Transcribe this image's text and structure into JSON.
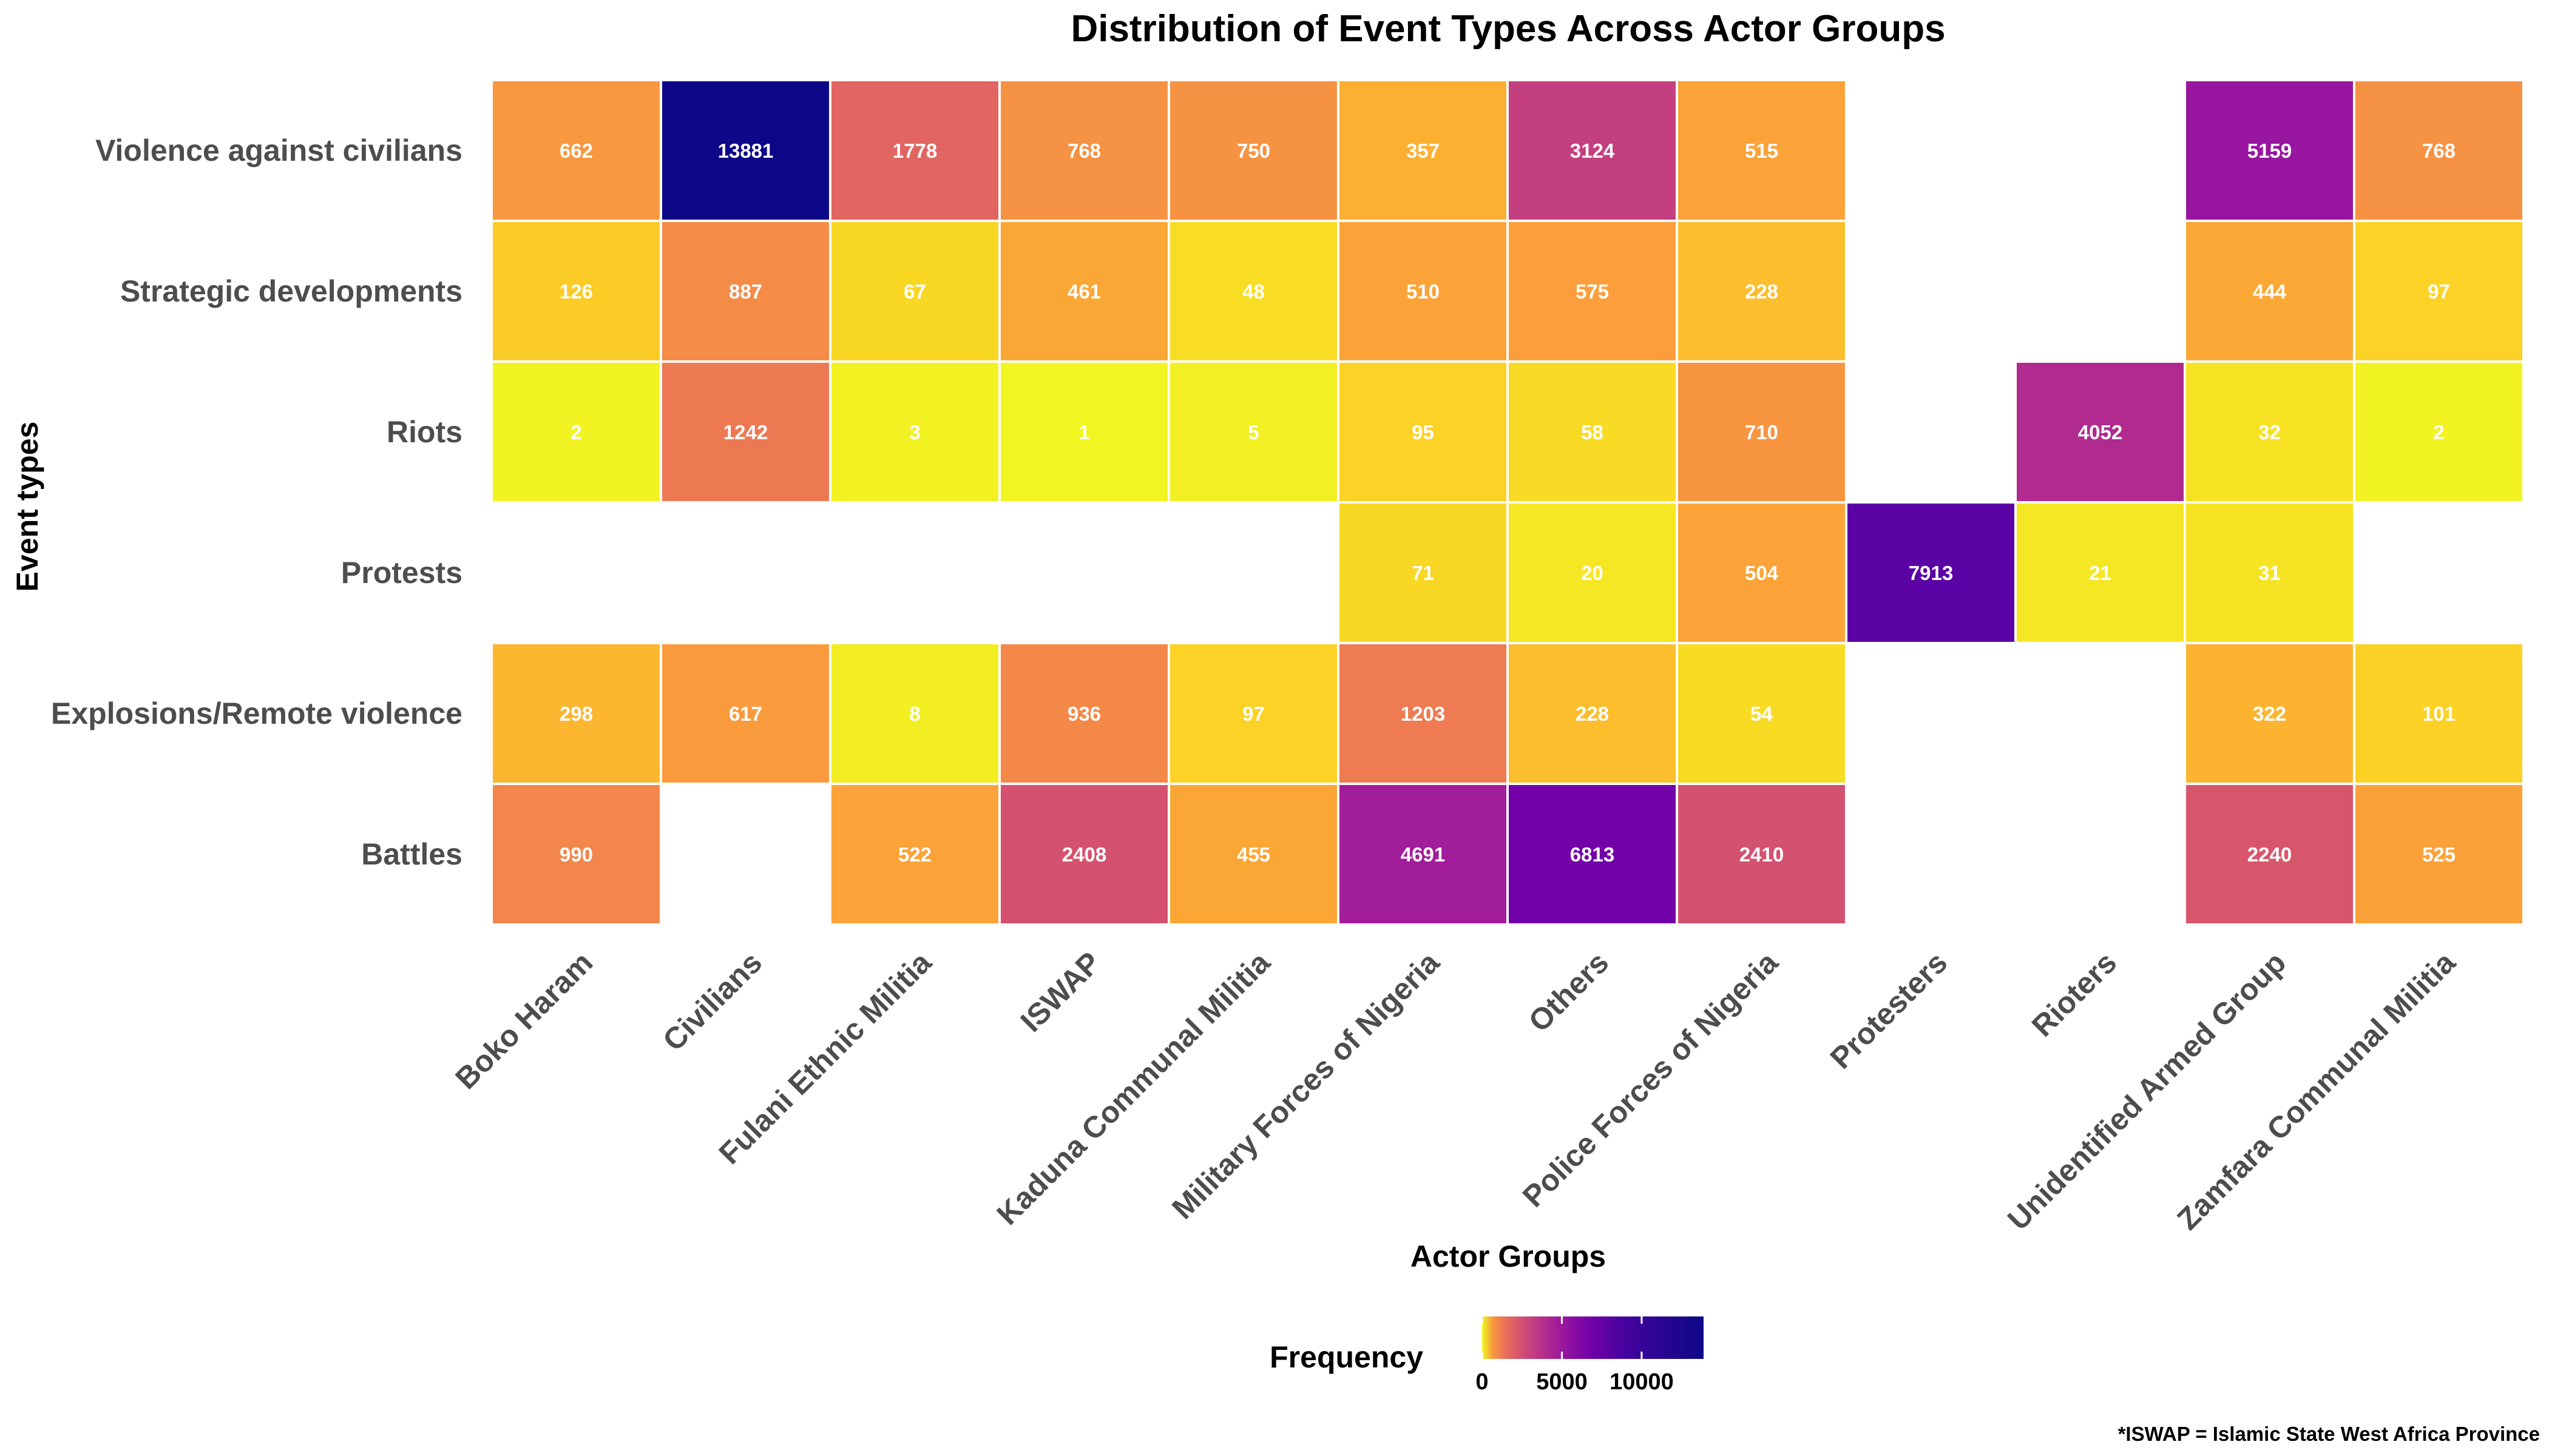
{
  "chart_data": {
    "type": "heatmap",
    "title": "Distribution of Event Types Across Actor Groups",
    "xlabel": "Actor Groups",
    "ylabel": "Event types",
    "x_categories": [
      "Boko Haram",
      "Civilians",
      "Fulani Ethnic Militia",
      "ISWAP",
      "Kaduna Communal Militia",
      "Military Forces of Nigeria",
      "Others",
      "Police Forces of Nigeria",
      "Protesters",
      "Rioters",
      "Unidentified Armed Group",
      "Zamfara Communal Militia"
    ],
    "y_categories": [
      "Violence against civilians",
      "Strategic developments",
      "Riots",
      "Protests",
      "Explosions/Remote violence",
      "Battles"
    ],
    "values": [
      [
        662,
        13881,
        1778,
        768,
        750,
        357,
        3124,
        515,
        null,
        null,
        5159,
        768
      ],
      [
        126,
        887,
        67,
        461,
        48,
        510,
        575,
        228,
        null,
        null,
        444,
        97
      ],
      [
        2,
        1242,
        3,
        1,
        5,
        95,
        58,
        710,
        null,
        4052,
        32,
        2
      ],
      [
        null,
        null,
        null,
        null,
        null,
        71,
        20,
        504,
        7913,
        21,
        31,
        null
      ],
      [
        298,
        617,
        8,
        936,
        97,
        1203,
        228,
        54,
        null,
        null,
        322,
        101
      ],
      [
        990,
        null,
        522,
        2408,
        455,
        4691,
        6813,
        2410,
        null,
        null,
        2240,
        525
      ]
    ],
    "colorscale": "plasma (reversed: low = yellow, high = dark blue)",
    "legend": {
      "title": "Frequency",
      "position": "bottom",
      "ticks": [
        0,
        5000,
        10000
      ],
      "tick_labels": [
        "0",
        "5000",
        "10000"
      ],
      "range": [
        0,
        13881
      ]
    },
    "caption": "*ISWAP = Islamic State West Africa Province",
    "grid": false
  }
}
